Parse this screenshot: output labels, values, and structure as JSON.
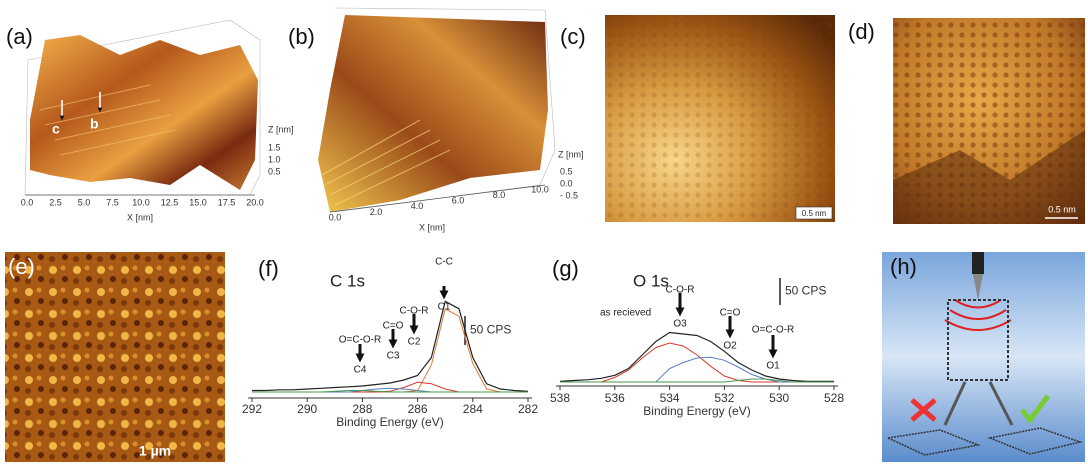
{
  "panels": {
    "a": {
      "label": "(a)",
      "xticks": [
        "0.0",
        "2.5",
        "5.0",
        "7.5",
        "10.0",
        "12.5",
        "15.0",
        "17.5",
        "20.0"
      ],
      "xlabel": "X [nm]",
      "zlabel": "Z [nm]",
      "zticks": [
        "1.5",
        "1.0",
        "0.5"
      ],
      "markers": [
        "c",
        "b"
      ]
    },
    "b": {
      "label": "(b)",
      "xticks": [
        "0.0",
        "2.0",
        "4.0",
        "6.0",
        "8.0",
        "10.0"
      ],
      "xlabel": "X [nm]",
      "zlabel": "Z [nm]",
      "zticks": [
        "0.5",
        "0.0",
        "- 0.5"
      ]
    },
    "c": {
      "label": "(c)",
      "scale": "0.5 nm"
    },
    "d": {
      "label": "(d)",
      "scale": "0.5 nm"
    },
    "e": {
      "label": "(e)",
      "scale": "1 µm"
    },
    "h": {
      "label": "(h)"
    }
  },
  "chart_data": [
    {
      "type": "line",
      "label": "(f)",
      "title": "C 1s",
      "xlabel": "Binding Energy (eV)",
      "scale_bar": "50 CPS",
      "x": [
        292,
        291.5,
        291,
        290.5,
        290,
        289.5,
        289,
        288.5,
        288,
        287.5,
        287,
        286.5,
        286,
        285.5,
        285,
        284.5,
        284,
        283.5,
        283,
        282.5,
        282
      ],
      "xlim": [
        292,
        282
      ],
      "xticks": [
        292,
        290,
        288,
        286,
        284,
        282
      ],
      "ylim": [
        0,
        200
      ],
      "annotations": [
        {
          "group": "C-C",
          "peak": "C1"
        },
        {
          "group": "C-O-R",
          "peak": "C2"
        },
        {
          "group": "C=O",
          "peak": "C3"
        },
        {
          "group": "O=C-O-R",
          "peak": "C4"
        }
      ],
      "series": [
        {
          "name": "envelope",
          "color": "#222222",
          "values": [
            6,
            6,
            7,
            7,
            8,
            9,
            10,
            11,
            12,
            14,
            16,
            20,
            26,
            50,
            125,
            115,
            50,
            15,
            8,
            6,
            5
          ]
        },
        {
          "name": "C1",
          "color": "#e07a3a",
          "values": [
            4,
            4,
            4,
            4,
            4,
            4,
            4,
            4,
            4,
            4,
            4,
            4,
            6,
            40,
            115,
            105,
            42,
            8,
            4,
            4,
            4
          ]
        },
        {
          "name": "C2",
          "color": "#d63a2a",
          "values": [
            4,
            4,
            4,
            4,
            4,
            4,
            4,
            4,
            4,
            4,
            5,
            10,
            17,
            15,
            8,
            4,
            4,
            4,
            4,
            4,
            4
          ]
        },
        {
          "name": "C3",
          "color": "#5a7fc0",
          "values": [
            4,
            4,
            4,
            4,
            4,
            4,
            4,
            4,
            6,
            8,
            9,
            8,
            6,
            4,
            4,
            4,
            4,
            4,
            4,
            4,
            4
          ]
        },
        {
          "name": "C4",
          "color": "#4a9a4a",
          "values": [
            4,
            4,
            4,
            4,
            4,
            4,
            5,
            6,
            6,
            5,
            4,
            4,
            4,
            4,
            4,
            4,
            4,
            4,
            4,
            4,
            4
          ]
        }
      ]
    },
    {
      "type": "line",
      "label": "(g)",
      "title": "O 1s",
      "note": "as recieved",
      "xlabel": "Binding Energy (eV)",
      "scale_bar": "50 CPS",
      "x": [
        538,
        537.5,
        537,
        536.5,
        536,
        535.5,
        535,
        534.5,
        534,
        533.5,
        533,
        532.5,
        532,
        531.5,
        531,
        530.5,
        530,
        529.5,
        529,
        528.5,
        528
      ],
      "xlim": [
        538,
        528
      ],
      "xticks": [
        538,
        536,
        534,
        532,
        530,
        528
      ],
      "ylim": [
        0,
        160
      ],
      "annotations": [
        {
          "group": "C-O-R",
          "peak": "O3"
        },
        {
          "group": "C=O",
          "peak": "O2"
        },
        {
          "group": "O=C-O-R",
          "peak": "O1"
        }
      ],
      "series": [
        {
          "name": "envelope",
          "color": "#222222",
          "values": [
            5,
            6,
            7,
            9,
            13,
            22,
            40,
            58,
            70,
            68,
            66,
            58,
            45,
            30,
            20,
            12,
            8,
            6,
            5,
            5,
            5
          ]
        },
        {
          "name": "O3",
          "color": "#d63a2a",
          "values": [
            4,
            4,
            4,
            4,
            10,
            20,
            36,
            50,
            56,
            52,
            40,
            25,
            12,
            6,
            4,
            4,
            4,
            4,
            4,
            4,
            4
          ]
        },
        {
          "name": "O2",
          "color": "#5a7fc0",
          "values": [
            4,
            4,
            4,
            4,
            4,
            4,
            4,
            4,
            22,
            30,
            36,
            37,
            33,
            24,
            14,
            8,
            4,
            4,
            4,
            4,
            4
          ]
        },
        {
          "name": "O1",
          "color": "#4a9a4a",
          "values": [
            4,
            4,
            4,
            4,
            4,
            4,
            4,
            4,
            4,
            4,
            4,
            4,
            4,
            6,
            8,
            8,
            6,
            4,
            4,
            4,
            4
          ]
        }
      ]
    }
  ]
}
